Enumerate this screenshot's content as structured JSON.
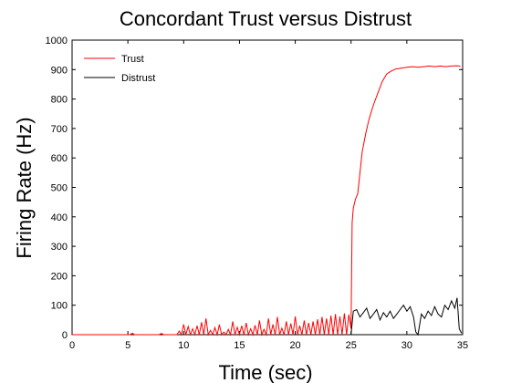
{
  "chart_data": {
    "type": "line",
    "title": "Concordant Trust versus Distrust",
    "xlabel": "Time (sec)",
    "ylabel": "Firing Rate (Hz)",
    "xlim": [
      0,
      35
    ],
    "ylim": [
      0,
      1000
    ],
    "xticks": [
      0,
      5,
      10,
      15,
      20,
      25,
      30,
      35
    ],
    "yticks": [
      0,
      100,
      200,
      300,
      400,
      500,
      600,
      700,
      800,
      900,
      1000
    ],
    "grid": false,
    "legend_position": "top-left",
    "series": [
      {
        "name": "Trust",
        "color": "#ff0000",
        "x": [
          0,
          5.2,
          5.4,
          5.6,
          7.8,
          8.0,
          8.2,
          9.4,
          9.6,
          9.8,
          10.0,
          10.2,
          10.4,
          10.6,
          10.8,
          11.0,
          11.2,
          11.4,
          11.6,
          11.8,
          12.0,
          12.2,
          12.4,
          12.6,
          12.8,
          13.0,
          13.2,
          13.4,
          13.6,
          13.8,
          14.0,
          14.2,
          14.4,
          14.6,
          14.8,
          15.0,
          15.2,
          15.4,
          15.6,
          15.8,
          16.0,
          16.2,
          16.4,
          16.6,
          16.8,
          17.0,
          17.2,
          17.4,
          17.6,
          17.8,
          18.0,
          18.2,
          18.4,
          18.6,
          18.8,
          19.0,
          19.2,
          19.4,
          19.6,
          19.8,
          20.0,
          20.2,
          20.4,
          20.6,
          20.8,
          21.0,
          21.2,
          21.4,
          21.6,
          21.8,
          22.0,
          22.2,
          22.4,
          22.6,
          22.8,
          23.0,
          23.2,
          23.4,
          23.6,
          23.8,
          24.0,
          24.2,
          24.4,
          24.6,
          24.8,
          25.0,
          25.1,
          25.2,
          25.4,
          25.6,
          25.8,
          26.0,
          26.3,
          26.6,
          27.0,
          27.4,
          27.8,
          28.2,
          28.6,
          29.0,
          29.5,
          30.0,
          30.5,
          31.0,
          31.5,
          32.0,
          32.5,
          33.0,
          33.5,
          34.0,
          34.5,
          34.8
        ],
        "y": [
          0,
          0,
          5,
          0,
          0,
          4,
          0,
          0,
          12,
          0,
          35,
          0,
          28,
          0,
          20,
          0,
          30,
          0,
          42,
          0,
          55,
          0,
          15,
          0,
          24,
          0,
          34,
          0,
          9,
          0,
          18,
          0,
          45,
          0,
          25,
          0,
          30,
          0,
          40,
          0,
          20,
          0,
          32,
          0,
          48,
          0,
          18,
          0,
          55,
          0,
          35,
          0,
          60,
          0,
          22,
          0,
          45,
          0,
          38,
          0,
          62,
          0,
          30,
          0,
          48,
          0,
          40,
          0,
          45,
          0,
          52,
          0,
          60,
          0,
          55,
          0,
          65,
          0,
          70,
          0,
          62,
          0,
          72,
          0,
          68,
          20,
          380,
          430,
          460,
          480,
          550,
          620,
          680,
          730,
          780,
          820,
          860,
          885,
          895,
          902,
          905,
          908,
          910,
          908,
          910,
          912,
          910,
          912,
          910,
          912,
          913,
          911
        ]
      },
      {
        "name": "Distrust",
        "color": "#000000",
        "x": [
          25.0,
          25.2,
          25.5,
          25.8,
          26.1,
          26.4,
          26.7,
          27.0,
          27.3,
          27.6,
          27.9,
          28.2,
          28.5,
          28.8,
          29.1,
          29.4,
          29.7,
          30.0,
          30.3,
          30.6,
          30.8,
          31.0,
          31.3,
          31.6,
          31.9,
          32.2,
          32.5,
          32.8,
          33.1,
          33.4,
          33.7,
          34.0,
          34.3,
          34.5,
          34.7,
          34.9
        ],
        "y": [
          0,
          80,
          85,
          60,
          75,
          90,
          55,
          70,
          85,
          50,
          75,
          60,
          80,
          55,
          70,
          85,
          100,
          80,
          95,
          60,
          10,
          0,
          70,
          55,
          80,
          65,
          95,
          70,
          60,
          100,
          85,
          115,
          90,
          125,
          20,
          5
        ]
      }
    ]
  }
}
